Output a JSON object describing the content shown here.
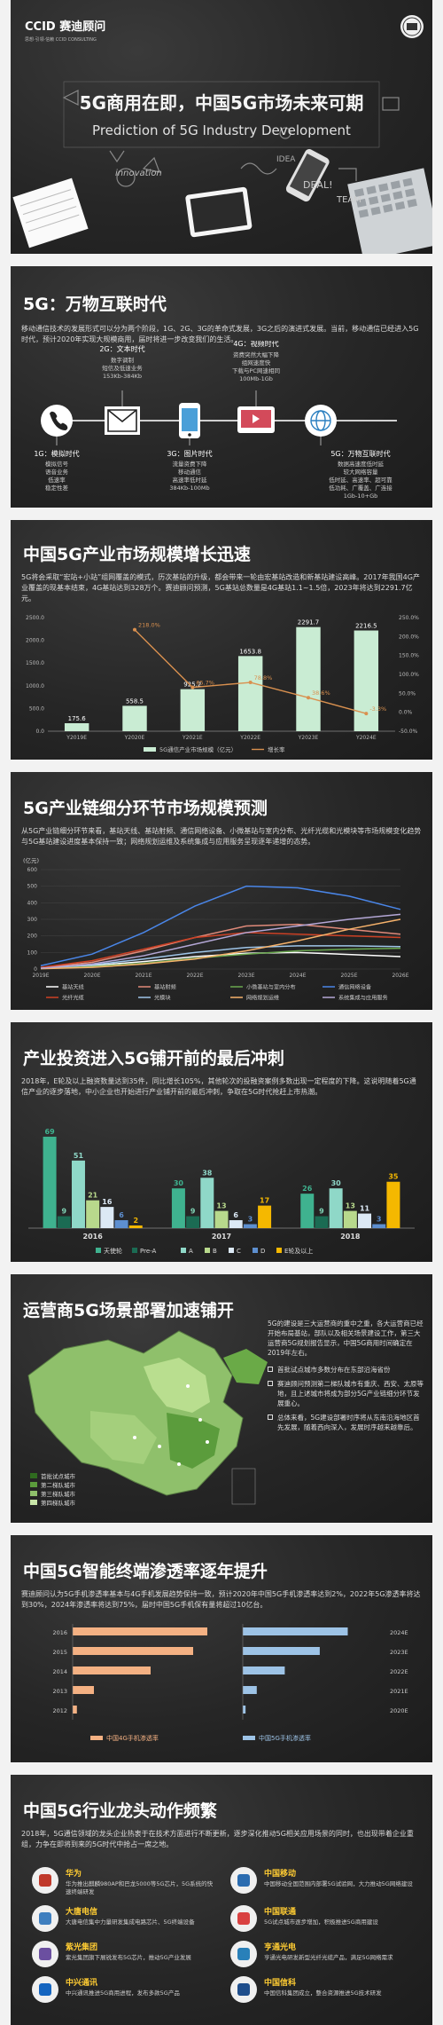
{
  "header": {
    "logo_text": "CCID 赛迪顾问",
    "logo_sub": "思想·引领·信赖 CCID CONSULTING",
    "title_cn": "5G商用在即，中国5G市场未来可期",
    "title_en": "Prediction of 5G Industry Development",
    "doodle_words": [
      "innovation",
      "DEAL!",
      "TEAM",
      "IDEA"
    ]
  },
  "sec1": {
    "title": "5G：万物互联时代",
    "paragraph": "移动通信技术的发展形式可以分为两个阶段，1G、2G、3G的革命式发展，3G之后的演进式发展。当前，移动通信已经进入5G时代，预计2020年实现大规模商用，届时将进一步改变我们的生活。",
    "eras": [
      {
        "name": "1G：模拟时代",
        "lines": [
          "模拟信号",
          "语音业务",
          "低速率",
          "稳定性差"
        ],
        "icon": "phone-icon"
      },
      {
        "name": "2G：文本时代",
        "lines": [
          "数字调制",
          "短信及低速业务",
          "153Kb-384Kb"
        ],
        "icon": "mail-icon"
      },
      {
        "name": "3G：图片时代",
        "lines": [
          "流量资费下降",
          "移动通信",
          "高速率低时延",
          "384Kb-100Mb"
        ],
        "icon": "mobile-icon"
      },
      {
        "name": "4G：视频时代",
        "lines": [
          "资费突然大幅下降",
          "组网速度快",
          "下载与PC网速相同",
          "100Mb-1Gb"
        ],
        "icon": "video-icon"
      },
      {
        "name": "5G：万物互联时代",
        "lines": [
          "数据高速度低时延",
          "较大网络容量",
          "低时延、高速率、超可靠",
          "低功耗、广覆盖、广连接",
          "1Gb-10+Gb"
        ],
        "icon": "globe-icon"
      }
    ]
  },
  "sec2": {
    "title": "中国5G产业市场规模增长迅速",
    "paragraph": "5G将会采取“宏站+小站”组网覆盖的模式，历次基站的升级，都会带来一轮由宏基站改造和新基站建设高峰。2017年我国4G产业覆盖的现基本结束，4G基站达到328万个。赛迪顾问预测，5G基站总数量是4G基站1.1~1.5倍，2023年将达到2291.7亿元。",
    "chart_data": {
      "type": "bar",
      "categories": [
        "Y2019E",
        "Y2020E",
        "Y2021E",
        "Y2022E",
        "Y2023E",
        "Y2024E"
      ],
      "series": [
        {
          "name": "5G通信产业市场规模（亿元）",
          "type": "bar",
          "values": [
            175.6,
            558.5,
            925.2,
            1653.8,
            2291.7,
            2216.5
          ],
          "labels": [
            "175.6",
            "558.5",
            "925.2",
            "1653.8",
            "2291.7",
            "2216.5"
          ]
        },
        {
          "name": "增长率",
          "type": "line",
          "values": [
            null,
            218.0,
            65.7,
            78.8,
            38.6,
            -3.3
          ],
          "labels": [
            "",
            "218.0%",
            "65.7%",
            "78.8%",
            "38.6%",
            "-3.3%"
          ]
        }
      ],
      "yaxis_left": {
        "ticks": [
          "0.0",
          "500.0",
          "1000.0",
          "1500.0",
          "2000.0",
          "2500.0"
        ],
        "range": [
          0,
          2500
        ]
      },
      "yaxis_right": {
        "ticks": [
          "-50.0%",
          "0.0%",
          "50.0%",
          "100.0%",
          "150.0%",
          "200.0%",
          "250.0%"
        ],
        "range": [
          -50,
          250
        ]
      },
      "legend_position": "bottom",
      "colors": {
        "bar": "#c9ecd3",
        "line": "#d9904f"
      }
    }
  },
  "sec3": {
    "title": "5G产业链细分环节市场规模预测",
    "paragraph": "从5G产业链细分环节来看，基站天线、基站射频、通信网络设备、小微基站与室内分布、光纤光缆和光模块等市场规模变化趋势与5G基站建设进度基本保持一致；网络规划运维及系统集成与应用服务呈现逐年递增的态势。",
    "unit": "(亿元)",
    "chart_data": {
      "type": "line",
      "x": [
        "2019E",
        "2020E",
        "2021E",
        "2022E",
        "2023E",
        "2024E",
        "2025E",
        "2026E"
      ],
      "ylim": [
        0,
        600
      ],
      "yticks": [
        "0",
        "100",
        "200",
        "300",
        "400",
        "500",
        "600"
      ],
      "series": [
        {
          "name": "基站天线",
          "color": "#ffffff",
          "values": [
            5,
            20,
            45,
            75,
            95,
            100,
            88,
            75
          ]
        },
        {
          "name": "基站射频",
          "color": "#e08a7a",
          "values": [
            8,
            40,
            110,
            190,
            260,
            270,
            240,
            210
          ]
        },
        {
          "name": "小微基站与室内分布",
          "color": "#6aa84f",
          "values": [
            3,
            15,
            35,
            65,
            90,
            110,
            120,
            125
          ]
        },
        {
          "name": "通信网络设备",
          "color": "#4a86e8",
          "values": [
            20,
            90,
            220,
            380,
            500,
            490,
            440,
            360
          ]
        },
        {
          "name": "光纤光缆",
          "color": "#cc4125",
          "values": [
            10,
            50,
            120,
            190,
            220,
            210,
            200,
            190
          ]
        },
        {
          "name": "光模块",
          "color": "#9fc5e8",
          "values": [
            5,
            25,
            60,
            100,
            130,
            140,
            140,
            135
          ]
        },
        {
          "name": "网络规划运维",
          "color": "#f6b26b",
          "values": [
            2,
            10,
            30,
            60,
            110,
            170,
            240,
            300
          ]
        },
        {
          "name": "系统集成与应用服务",
          "color": "#b4a7d6",
          "values": [
            5,
            30,
            80,
            150,
            220,
            260,
            300,
            330
          ]
        }
      ],
      "legend_position": "bottom"
    }
  },
  "sec4": {
    "title": "产业投资进入5G铺开前的最后冲刺",
    "paragraph": "2018年，E轮及以上融资数量达到35件，同比增长105%，其他轮次的投融资案例多数出现一定程度的下降。这说明随着5G通信产业的逐步落地，中小企业也开始进行产业铺开前的最后冲刺，争取在5G时代抢赶上市热潮。",
    "chart_data": {
      "type": "bar",
      "categories": [
        "2016",
        "2017",
        "2018"
      ],
      "series": [
        {
          "name": "天使轮",
          "color": "#3fb28f",
          "values": [
            69,
            30,
            26
          ]
        },
        {
          "name": "Pre-A",
          "color": "#1b6b53",
          "values": [
            9,
            9,
            9
          ]
        },
        {
          "name": "A",
          "color": "#8fd8c8",
          "values": [
            51,
            38,
            30
          ]
        },
        {
          "name": "B",
          "color": "#b8d98c",
          "values": [
            21,
            13,
            13
          ]
        },
        {
          "name": "C",
          "color": "#dce9f5",
          "values": [
            16,
            6,
            11
          ]
        },
        {
          "name": "D",
          "color": "#5d8fd0",
          "values": [
            6,
            3,
            3
          ]
        },
        {
          "name": "E轮及以上",
          "color": "#f5b800",
          "values": [
            2,
            17,
            35
          ]
        }
      ],
      "legend_position": "bottom"
    }
  },
  "sec5": {
    "title": "运营商5G场景部署加速铺开",
    "paragraph": "5G的建设是三大运营商的重中之重，各大运营商已经开始布局基站，部队以及相关场景建设工作，第三大运营商5G规划报告显示，中国5G商用时间确定在2019年左右。",
    "bullets": [
      "首批试点城市多数分布在东部沿海省份",
      "赛迪顾问预测第二梯队城市有重庆、西安、太原等地，且上述城市将成为部分5G产业链细分环节发展重心。",
      "总体来看，5G建设部署时序将从东南沿海地区首先发展，随着西向深入，发展时序越来越靠后。"
    ],
    "legend": [
      "首批试点城市",
      "第二梯队城市",
      "第三梯队城市",
      "第四梯队城市"
    ]
  },
  "sec6": {
    "title": "中国5G智能终端渗透率逐年提升",
    "paragraph": "赛迪顾问认为5G手机渗透率基本与4G手机发展趋势保持一致，预计2020年中国5G手机渗透率达到2%，2022年5G渗透率将达到30%，2024年渗透率将达到75%，届时中国5G手机保有量将超过10亿台。",
    "chart_data": {
      "type": "bar",
      "orientation": "horizontal",
      "series": [
        {
          "name": "中国4G手机渗透率",
          "color": "#f4b183",
          "categories": [
            "2016",
            "2015",
            "2014",
            "2013",
            "2012"
          ],
          "values": [
            95,
            85,
            55,
            15,
            3
          ]
        },
        {
          "name": "中国5G手机渗透率",
          "color": "#9dc3e6",
          "categories": [
            "2024E",
            "2023E",
            "2022E",
            "2021E",
            "2020E"
          ],
          "values": [
            75,
            55,
            30,
            10,
            2
          ]
        }
      ],
      "legend_position": "bottom"
    }
  },
  "sec7": {
    "title": "中国5G行业龙头动作频繁",
    "paragraph": "2018年，5G通信领域的龙头企业热衷于在技术方面进行不断更新，逐步深化推动5G相关应用场景的同时，也出现带着企业重组，力争在即将到来的5G时代中抢占一席之地。",
    "companies": [
      {
        "name": "华为",
        "icon": "huawei-icon",
        "desc": "华为推出麒麟980AP和巴龙5000等5G芯片，5G系统的快速终端研发"
      },
      {
        "name": "中国移动",
        "icon": "china-mobile-icon",
        "desc": "中国移动全国范围内部署5G试验网，大力推动5G网络建设"
      },
      {
        "name": "大唐电信",
        "icon": "datang-icon",
        "desc": "大唐电信集中力量研发集成电路芯片、5G终端设备"
      },
      {
        "name": "中国联通",
        "icon": "china-unicom-icon",
        "desc": "5G试点城市逐步增加，积极推进5G商用建设"
      },
      {
        "name": "紫光集团",
        "icon": "unigroup-icon",
        "desc": "紫光集团旗下展锐发布5G芯片，推动5G产业发展"
      },
      {
        "name": "亨通光电",
        "icon": "hengtong-icon",
        "desc": "亨通光电研发新型光纤光缆产品，满足5G网络需求"
      },
      {
        "name": "中兴通讯",
        "icon": "zte-icon",
        "desc": "中兴通讯推进5G商用进程，发布多款5G产品"
      },
      {
        "name": "中国信科",
        "icon": "cict-icon",
        "desc": "中国信科集团成立，整合资源推进5G技术研发"
      }
    ]
  }
}
